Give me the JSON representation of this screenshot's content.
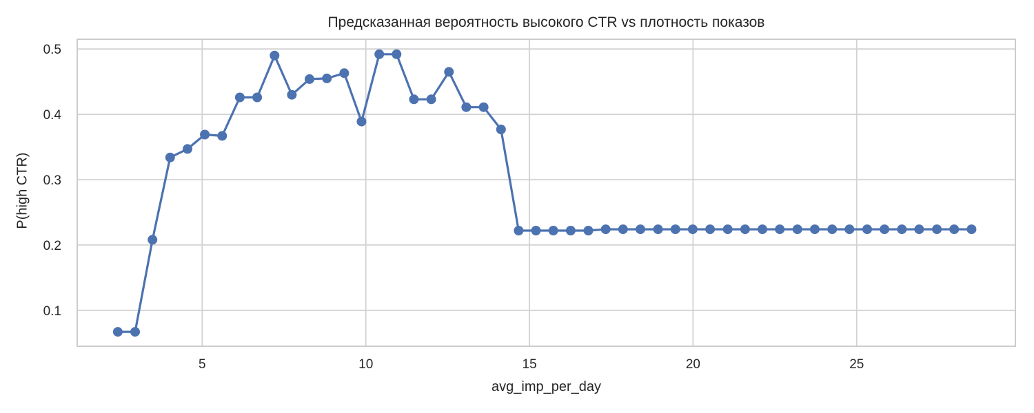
{
  "chart_data": {
    "type": "line",
    "title": "Предсказанная вероятность высокого CTR vs плотность показов",
    "xlabel": "avg_imp_per_day",
    "ylabel": "P(high CTR)",
    "x": [
      2.42,
      2.95,
      3.48,
      4.02,
      4.55,
      5.08,
      5.61,
      6.15,
      6.68,
      7.21,
      7.74,
      8.28,
      8.81,
      9.34,
      9.87,
      10.41,
      10.94,
      11.47,
      12.0,
      12.54,
      13.07,
      13.6,
      14.13,
      14.67,
      15.2,
      15.73,
      16.26,
      16.8,
      17.33,
      17.86,
      18.39,
      18.93,
      19.46,
      19.99,
      20.52,
      21.06,
      21.59,
      22.12,
      22.65,
      23.19,
      23.72,
      24.25,
      24.78,
      25.32,
      25.85,
      26.38,
      26.91,
      27.45,
      27.98,
      28.51
    ],
    "y": [
      0.067,
      0.067,
      0.208,
      0.334,
      0.347,
      0.369,
      0.367,
      0.426,
      0.426,
      0.49,
      0.43,
      0.454,
      0.455,
      0.463,
      0.389,
      0.492,
      0.492,
      0.423,
      0.423,
      0.465,
      0.411,
      0.411,
      0.377,
      0.222,
      0.222,
      0.222,
      0.222,
      0.222,
      0.224,
      0.224,
      0.224,
      0.224,
      0.224,
      0.224,
      0.224,
      0.224,
      0.224,
      0.224,
      0.224,
      0.224,
      0.224,
      0.224,
      0.224,
      0.224,
      0.224,
      0.224,
      0.224,
      0.224,
      0.224,
      0.224
    ],
    "xticks": [
      5,
      10,
      15,
      20,
      25
    ],
    "yticks": [
      0.1,
      0.2,
      0.3,
      0.4,
      0.5
    ],
    "xlim": [
      1.18,
      29.85
    ],
    "ylim": [
      0.045,
      0.515
    ],
    "grid": true,
    "legend": "none",
    "marker": "circle",
    "colors": {
      "line": "#4C72B0",
      "grid": "#D2D2D2",
      "spine": "#CCCCCC",
      "text": "#262626",
      "background": "#FFFFFF"
    }
  }
}
